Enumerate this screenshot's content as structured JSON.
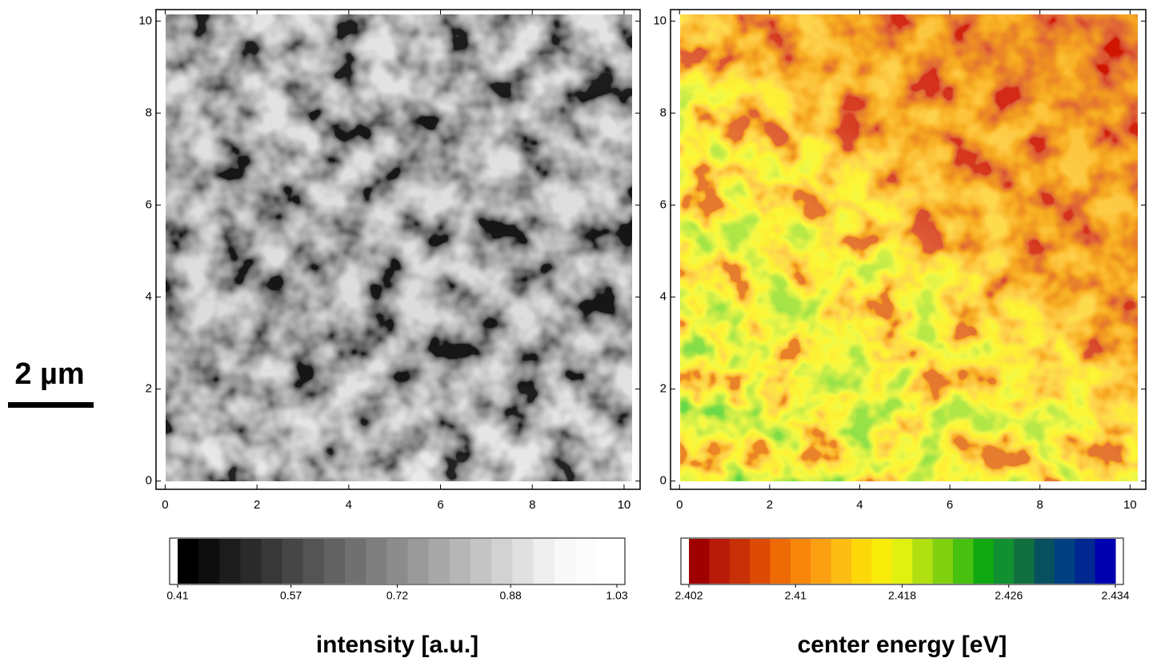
{
  "scale_bar": {
    "label": "2 µm"
  },
  "chart_data": [
    {
      "type": "heatmap",
      "xlim": [
        -0.2,
        10.35
      ],
      "ylim": [
        -0.18,
        10.25
      ],
      "xticks": [
        0,
        2,
        4,
        6,
        8,
        10
      ],
      "yticks": [
        0,
        2,
        4,
        6,
        8,
        10
      ],
      "colorbar": {
        "label": "intensity [a.u.]",
        "lim": [
          0.41,
          1.03
        ],
        "ticks": [
          0.41,
          0.57,
          0.72,
          0.88,
          1.03
        ],
        "colors": [
          "#000000",
          "#0e0e0e",
          "#1c1c1c",
          "#2a2a2a",
          "#383838",
          "#464646",
          "#545454",
          "#626262",
          "#707070",
          "#7e7e7e",
          "#8c8c8c",
          "#9a9a9a",
          "#a8a8a8",
          "#b6b6b6",
          "#c4c4c4",
          "#d2d2d2",
          "#e0e0e0",
          "#eeeeee",
          "#f8f8f8",
          "#fcfcfc",
          "#ffffff"
        ]
      }
    },
    {
      "type": "heatmap",
      "xlim": [
        -0.2,
        10.35
      ],
      "ylim": [
        -0.18,
        10.25
      ],
      "xticks": [
        0,
        2,
        4,
        6,
        8,
        10
      ],
      "yticks": [
        0,
        2,
        4,
        6,
        8,
        10
      ],
      "colorbar": {
        "label": "center energy [eV]",
        "lim": [
          2.402,
          2.434
        ],
        "ticks": [
          2.402,
          2.41,
          2.418,
          2.426,
          2.434
        ],
        "colors": [
          "#a00000",
          "#b81a0a",
          "#c83008",
          "#dc4a04",
          "#ee6a04",
          "#f8860a",
          "#fca012",
          "#fcbc12",
          "#fcd80a",
          "#f8ec0a",
          "#e0f010",
          "#b0e010",
          "#80d010",
          "#48c010",
          "#10a810",
          "#109030",
          "#107040",
          "#085060",
          "#004080",
          "#002890",
          "#0000b0"
        ]
      }
    }
  ]
}
